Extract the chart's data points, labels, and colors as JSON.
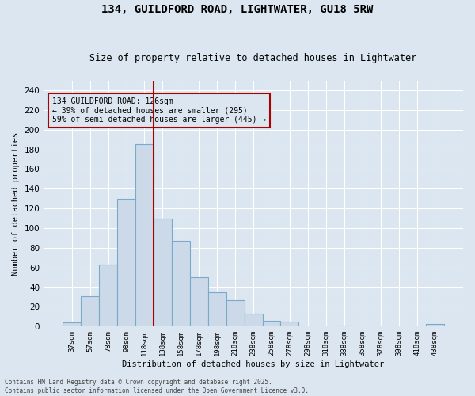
{
  "title1": "134, GUILDFORD ROAD, LIGHTWATER, GU18 5RW",
  "title2": "Size of property relative to detached houses in Lightwater",
  "xlabel": "Distribution of detached houses by size in Lightwater",
  "ylabel": "Number of detached properties",
  "bin_labels": [
    "37sqm",
    "57sqm",
    "78sqm",
    "98sqm",
    "118sqm",
    "138sqm",
    "158sqm",
    "178sqm",
    "198sqm",
    "218sqm",
    "238sqm",
    "258sqm",
    "278sqm",
    "298sqm",
    "318sqm",
    "338sqm",
    "358sqm",
    "378sqm",
    "398sqm",
    "418sqm",
    "438sqm"
  ],
  "bar_heights": [
    4,
    31,
    63,
    130,
    185,
    110,
    87,
    50,
    35,
    27,
    13,
    6,
    5,
    0,
    0,
    1,
    0,
    0,
    0,
    0,
    3
  ],
  "bar_color": "#ccd9e8",
  "bar_edge_color": "#7aaaca",
  "bg_color": "#dce6f0",
  "grid_color": "#ffffff",
  "vline_x_index": 4,
  "vline_color": "#aa0000",
  "annotation_text": "134 GUILDFORD ROAD: 126sqm\n← 39% of detached houses are smaller (295)\n59% of semi-detached houses are larger (445) →",
  "annotation_box_color": "#aa0000",
  "ylim": [
    0,
    250
  ],
  "yticks": [
    0,
    20,
    40,
    60,
    80,
    100,
    120,
    140,
    160,
    180,
    200,
    220,
    240
  ],
  "footnote": "Contains HM Land Registry data © Crown copyright and database right 2025.\nContains public sector information licensed under the Open Government Licence v3.0."
}
